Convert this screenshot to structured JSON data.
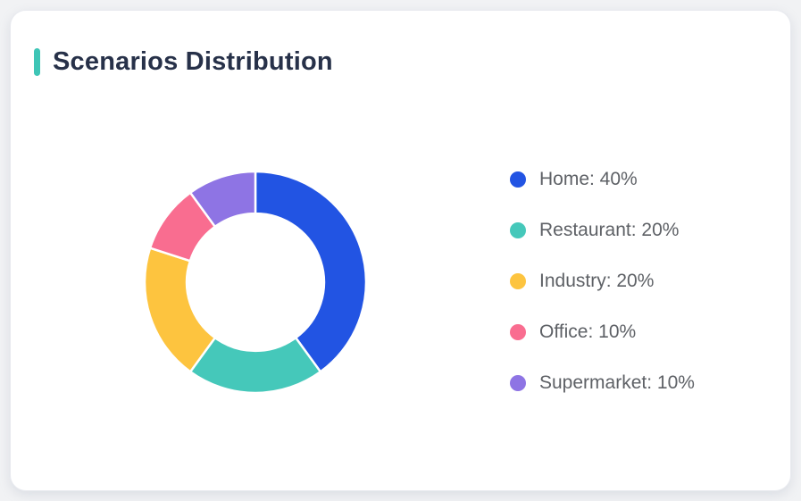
{
  "card": {
    "title": "Scenarios Distribution"
  },
  "colors": {
    "accent_bar": "#3EC5B6",
    "card_background": "#FFFFFF",
    "page_background": "#F1F2F4",
    "title_text": "#273149",
    "legend_text": "#5E6166",
    "segment_gap": "#FFFFFF"
  },
  "chart_data": {
    "type": "pie",
    "title": "Scenarios Distribution",
    "donut": true,
    "start_angle_deg": 0,
    "direction": "clockwise",
    "inner_radius_ratio": 0.62,
    "grid": false,
    "legend_position": "right",
    "unit": "%",
    "series": [
      {
        "name": "Home",
        "value": 40,
        "color": "#2254E3"
      },
      {
        "name": "Restaurant",
        "value": 20,
        "color": "#45C8BA"
      },
      {
        "name": "Industry",
        "value": 20,
        "color": "#FDC43F"
      },
      {
        "name": "Office",
        "value": 10,
        "color": "#F96D90"
      },
      {
        "name": "Supermarket",
        "value": 10,
        "color": "#8E74E4"
      }
    ],
    "legend_labels": [
      "Home: 40%",
      "Restaurant: 20%",
      "Industry: 20%",
      "Office: 10%",
      "Supermarket: 10%"
    ]
  }
}
